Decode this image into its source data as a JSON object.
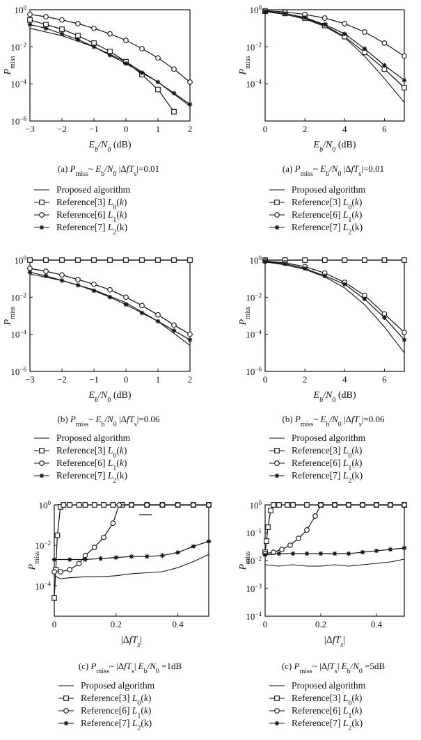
{
  "legend": {
    "entries": [
      {
        "name": "Proposed algorithm",
        "marker": "none"
      },
      {
        "name": "Reference[3] L0(k)",
        "marker": "square"
      },
      {
        "name": "Reference[6] L1(k)",
        "marker": "circle"
      },
      {
        "name": "Reference[7] L2(k)",
        "marker": "star"
      }
    ]
  },
  "chart_data": [
    {
      "type": "line",
      "panel": "a-left",
      "caption": "(a) Pmiss~ Eb/N0   |ΔfTs|=0.01",
      "xlabel": "Eb/N0 (dB)",
      "ylabel": "Pmiss",
      "xlim": [
        -3,
        2
      ],
      "ylim_log10": [
        -6,
        0
      ],
      "yscale": "log",
      "xticks": [
        "-3",
        "-2",
        "-1",
        "0",
        "1",
        "2"
      ],
      "yticks": [
        "10^0",
        "10^-2",
        "10^-4",
        "10^-6"
      ],
      "grid": false,
      "series": [
        {
          "name": "Proposed algorithm",
          "marker": "none",
          "x": [
            -3,
            -2,
            -1,
            0,
            1,
            2
          ],
          "y_log10": [
            -1.0,
            -1.4,
            -2.0,
            -2.8,
            -3.9,
            -5.2
          ]
        },
        {
          "name": "Reference[3] L0(k)",
          "marker": "square",
          "x": [
            -3,
            -2.5,
            -2,
            -1.5,
            -1,
            -0.5,
            0,
            0.5,
            1,
            1.5
          ],
          "y_log10": [
            -0.55,
            -0.8,
            -1.05,
            -1.4,
            -1.8,
            -2.25,
            -2.8,
            -3.5,
            -4.3,
            -5.5
          ]
        },
        {
          "name": "Reference[6] L1(k)",
          "marker": "circle",
          "x": [
            -3,
            -2.5,
            -2,
            -1.5,
            -1,
            -0.5,
            0,
            0.5,
            1,
            1.5,
            2
          ],
          "y_log10": [
            -0.25,
            -0.38,
            -0.55,
            -0.75,
            -1.0,
            -1.3,
            -1.65,
            -2.1,
            -2.6,
            -3.2,
            -3.9
          ]
        },
        {
          "name": "Reference[7] L2(k)",
          "marker": "star",
          "x": [
            -3,
            -2.5,
            -2,
            -1.5,
            -1,
            -0.5,
            0,
            0.5,
            1,
            1.5,
            2
          ],
          "y_log10": [
            -0.8,
            -1.0,
            -1.3,
            -1.6,
            -2.0,
            -2.45,
            -2.9,
            -3.4,
            -3.9,
            -4.5,
            -5.1
          ]
        }
      ]
    },
    {
      "type": "line",
      "panel": "a-right",
      "caption": "(a) Pmiss~ Eb/N0   |ΔfTs|=0.01",
      "xlabel": "Eb/N0 (dB)",
      "ylabel": "Pmiss",
      "xlim": [
        0,
        7
      ],
      "ylim_log10": [
        -6,
        0
      ],
      "yscale": "log",
      "xticks": [
        "0",
        "2",
        "4",
        "6"
      ],
      "yticks": [
        "10^0",
        "10^-2",
        "10^-4"
      ],
      "grid": false,
      "series": [
        {
          "name": "Proposed algorithm",
          "marker": "none",
          "x": [
            0,
            1,
            2,
            3,
            4,
            5,
            6,
            7
          ],
          "y_log10": [
            -0.1,
            -0.25,
            -0.5,
            -0.9,
            -1.5,
            -2.5,
            -3.7,
            -5.0
          ]
        },
        {
          "name": "Reference[3] L0(k)",
          "marker": "square",
          "x": [
            0,
            1,
            2,
            3,
            4,
            5,
            6,
            7
          ],
          "y_log10": [
            -0.08,
            -0.2,
            -0.45,
            -0.85,
            -1.45,
            -2.3,
            -3.2,
            -4.2
          ]
        },
        {
          "name": "Reference[6] L1(k)",
          "marker": "circle",
          "x": [
            0,
            1,
            2,
            3,
            4,
            5,
            6,
            7
          ],
          "y_log10": [
            -0.05,
            -0.12,
            -0.25,
            -0.45,
            -0.75,
            -1.2,
            -1.8,
            -2.5
          ]
        },
        {
          "name": "Reference[7] L2(k)",
          "marker": "star",
          "x": [
            0,
            1,
            2,
            3,
            4,
            5,
            6,
            7
          ],
          "y_log10": [
            -0.08,
            -0.2,
            -0.42,
            -0.8,
            -1.3,
            -2.1,
            -3.0,
            -3.8
          ]
        }
      ]
    },
    {
      "type": "line",
      "panel": "b-left",
      "caption": "(b) Pmiss~ Eb/N0   |ΔfTs|=0.06",
      "xlabel": "Eb/N0 (dB)",
      "ylabel": "Pmiss",
      "xlim": [
        -3,
        2
      ],
      "ylim_log10": [
        -6,
        0
      ],
      "yscale": "log",
      "xticks": [
        "-3",
        "-2",
        "-1",
        "0",
        "1",
        "2"
      ],
      "yticks": [
        "10^0",
        "10^-2",
        "10^-4",
        "10^-6"
      ],
      "grid": false,
      "series": [
        {
          "name": "Proposed algorithm",
          "marker": "none",
          "x": [
            -3,
            -2,
            -1,
            0,
            1,
            2
          ],
          "y_log10": [
            -0.75,
            -1.1,
            -1.6,
            -2.3,
            -3.3,
            -4.6
          ]
        },
        {
          "name": "Reference[3] L0(k)",
          "marker": "square",
          "x": [
            -3,
            -2.5,
            -2,
            -1.5,
            -1,
            -0.5,
            0,
            0.5,
            1,
            1.5,
            2
          ],
          "y_log10": [
            0,
            0,
            0,
            0,
            0,
            0,
            0,
            0,
            0,
            0,
            0
          ]
        },
        {
          "name": "Reference[6] L1(k)",
          "marker": "circle",
          "x": [
            -3,
            -2.5,
            -2,
            -1.5,
            -1,
            -0.5,
            0,
            0.5,
            1,
            1.5,
            2
          ],
          "y_log10": [
            -0.45,
            -0.6,
            -0.8,
            -1.05,
            -1.3,
            -1.6,
            -2.0,
            -2.45,
            -2.95,
            -3.5,
            -4.0
          ]
        },
        {
          "name": "Reference[7] L2(k)",
          "marker": "star",
          "x": [
            -3,
            -2.5,
            -2,
            -1.5,
            -1,
            -0.5,
            0,
            0.5,
            1,
            1.5,
            2
          ],
          "y_log10": [
            -0.65,
            -0.85,
            -1.1,
            -1.35,
            -1.65,
            -2.0,
            -2.4,
            -2.85,
            -3.3,
            -3.8,
            -4.3
          ]
        }
      ]
    },
    {
      "type": "line",
      "panel": "b-right",
      "caption": "(b) Pmiss~ Eb/N0   |ΔfTs|=0.06",
      "xlabel": "Eb/N0 (dB)",
      "ylabel": "Pmiss",
      "xlim": [
        0,
        7
      ],
      "ylim_log10": [
        -6,
        0
      ],
      "yscale": "log",
      "xticks": [
        "0",
        "2",
        "4",
        "6"
      ],
      "yticks": [
        "10^0",
        "10^-2",
        "10^-4",
        "10^-6"
      ],
      "grid": false,
      "series": [
        {
          "name": "Proposed algorithm",
          "marker": "none",
          "x": [
            0,
            1,
            2,
            3,
            4,
            5,
            6,
            7
          ],
          "y_log10": [
            -0.1,
            -0.25,
            -0.5,
            -0.9,
            -1.5,
            -2.4,
            -3.6,
            -5.0
          ]
        },
        {
          "name": "Reference[3] L0(k)",
          "marker": "square",
          "x": [
            0,
            1,
            2,
            3,
            4,
            5,
            6,
            7
          ],
          "y_log10": [
            0,
            0,
            0,
            0,
            0,
            0,
            0,
            0
          ]
        },
        {
          "name": "Reference[6] L1(k)",
          "marker": "circle",
          "x": [
            0,
            1,
            2,
            3,
            4,
            5,
            6,
            7
          ],
          "y_log10": [
            -0.05,
            -0.15,
            -0.35,
            -0.7,
            -1.2,
            -1.9,
            -2.9,
            -3.9
          ]
        },
        {
          "name": "Reference[7] L2(k)",
          "marker": "star",
          "x": [
            0,
            1,
            2,
            3,
            4,
            5,
            6,
            7
          ],
          "y_log10": [
            -0.08,
            -0.2,
            -0.45,
            -0.85,
            -1.3,
            -2.1,
            -3.1,
            -4.3
          ]
        }
      ]
    },
    {
      "type": "line",
      "panel": "c-left",
      "caption": "(c) Pmiss~ |ΔfTs|   Eb/N0 =1dB",
      "xlabel": "|ΔfTs|",
      "ylabel": "Pmiss",
      "xlim": [
        0,
        0.5
      ],
      "ylim_log10": [
        -5.5,
        0
      ],
      "yscale": "log",
      "xticks": [
        "0",
        "0.2",
        "0.4"
      ],
      "yticks": [
        "10^0",
        "10^-2",
        "10^-4"
      ],
      "grid": false,
      "series": [
        {
          "name": "Proposed algorithm",
          "marker": "none",
          "x": [
            0,
            0.02,
            0.05,
            0.1,
            0.15,
            0.2,
            0.25,
            0.3,
            0.35,
            0.4,
            0.45,
            0.5
          ],
          "y_log10": [
            -3.5,
            -3.65,
            -3.6,
            -3.55,
            -3.55,
            -3.5,
            -3.4,
            -3.35,
            -3.3,
            -3.1,
            -2.8,
            -2.45
          ]
        },
        {
          "name": "Reference[3] L0(k)",
          "marker": "square",
          "x": [
            0,
            0.005,
            0.01,
            0.02,
            0.03,
            0.05,
            0.08,
            0.1,
            0.13,
            0.16,
            0.19,
            0.22,
            0.25,
            0.3,
            0.35,
            0.4,
            0.45,
            0.5
          ],
          "y_log10": [
            -4.6,
            -3.2,
            -1.5,
            -0.1,
            0,
            0,
            0,
            0,
            0,
            0,
            0,
            0,
            0,
            0,
            0,
            0,
            0,
            0
          ]
        },
        {
          "name": "Reference[6] L1(k)",
          "marker": "circle",
          "x": [
            0,
            0.02,
            0.05,
            0.08,
            0.1,
            0.13,
            0.16,
            0.19,
            0.21,
            0.25,
            0.3,
            0.35,
            0.4,
            0.45,
            0.5
          ],
          "y_log10": [
            -3.3,
            -3.3,
            -3.2,
            -2.9,
            -2.5,
            -2.1,
            -1.6,
            -0.9,
            0,
            0,
            0,
            0,
            0,
            0,
            0
          ]
        },
        {
          "name": "Reference[7] L2(k)",
          "marker": "star",
          "x": [
            0,
            0.05,
            0.1,
            0.15,
            0.2,
            0.25,
            0.3,
            0.35,
            0.4,
            0.45,
            0.5
          ],
          "y_log10": [
            -2.7,
            -2.7,
            -2.7,
            -2.65,
            -2.6,
            -2.55,
            -2.55,
            -2.5,
            -2.35,
            -2.05,
            -1.8
          ]
        }
      ]
    },
    {
      "type": "line",
      "panel": "c-right",
      "caption": "(c) Pmiss~ |ΔfTs|   Eb/N0 =5dB",
      "xlabel": "|ΔfTs|",
      "ylabel": "Pmiss",
      "xlim": [
        0,
        0.5
      ],
      "ylim_log10": [
        -4,
        0
      ],
      "yscale": "log",
      "xticks": [
        "0",
        "0.2",
        "0.4"
      ],
      "yticks": [
        "10^0",
        "10^-1",
        "10^-2",
        "10^-3",
        "10^-4"
      ],
      "grid": false,
      "series": [
        {
          "name": "Proposed algorithm",
          "marker": "none",
          "x": [
            0,
            0.05,
            0.1,
            0.15,
            0.2,
            0.25,
            0.3,
            0.35,
            0.4,
            0.45,
            0.5
          ],
          "y_log10": [
            -2.15,
            -2.2,
            -2.15,
            -2.2,
            -2.2,
            -2.15,
            -2.2,
            -2.15,
            -2.1,
            -2.05,
            -1.95
          ]
        },
        {
          "name": "Reference[3] L0(k)",
          "marker": "square",
          "x": [
            0,
            0.005,
            0.01,
            0.02,
            0.03,
            0.05,
            0.08,
            0.1,
            0.15,
            0.2,
            0.25,
            0.3,
            0.35,
            0.4,
            0.45,
            0.5
          ],
          "y_log10": [
            -1.7,
            -1.3,
            -0.8,
            -0.2,
            0,
            0,
            0,
            0,
            0,
            0,
            0,
            0,
            0,
            0,
            0,
            0
          ]
        },
        {
          "name": "Reference[6] L1(k)",
          "marker": "circle",
          "x": [
            0,
            0.03,
            0.06,
            0.09,
            0.12,
            0.15,
            0.18,
            0.2,
            0.25,
            0.3,
            0.35,
            0.4,
            0.45,
            0.5
          ],
          "y_log10": [
            -1.75,
            -1.7,
            -1.6,
            -1.45,
            -1.2,
            -0.9,
            -0.4,
            0,
            0,
            0,
            0,
            0,
            0,
            0
          ]
        },
        {
          "name": "Reference[7] L2(k)",
          "marker": "star",
          "x": [
            0,
            0.05,
            0.1,
            0.15,
            0.2,
            0.25,
            0.3,
            0.35,
            0.4,
            0.45,
            0.5
          ],
          "y_log10": [
            -1.8,
            -1.75,
            -1.75,
            -1.75,
            -1.75,
            -1.75,
            -1.75,
            -1.7,
            -1.65,
            -1.6,
            -1.55
          ]
        }
      ]
    }
  ]
}
